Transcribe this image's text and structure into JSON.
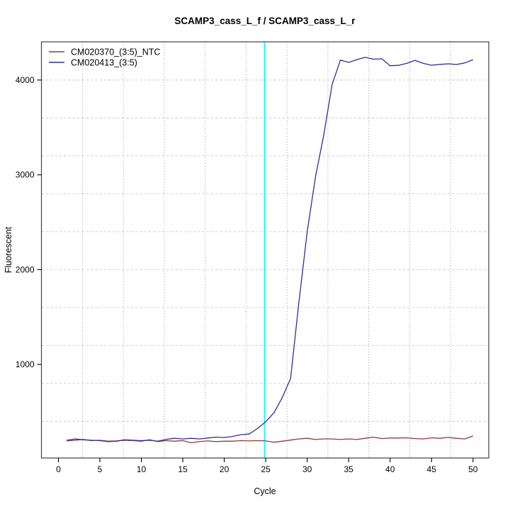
{
  "chart_data": {
    "type": "line",
    "title": "SCAMP3_cass_L_f / SCAMP3_cass_L_r",
    "xlabel": "Cycle",
    "ylabel": "Fluorescent",
    "xlim": [
      -2.05,
      51.9
    ],
    "ylim": [
      13,
      4403
    ],
    "x_ticks": [
      0,
      5,
      10,
      15,
      20,
      25,
      30,
      35,
      40,
      45,
      50
    ],
    "y_ticks": [
      1000,
      2000,
      3000,
      4000
    ],
    "grid": {
      "on": true,
      "x_lines": [
        2.9,
        7.83,
        12.77,
        17.7,
        22.63,
        27.57,
        32.5,
        37.43,
        42.37,
        47.3
      ],
      "y_lines": [
        400,
        800,
        1200,
        1600,
        2000,
        2400,
        2800,
        3200,
        3600,
        4000
      ],
      "x_line_style": "dotted",
      "y_line_style": "dashed",
      "x_line_color": "#8f8f8f",
      "y_line_color": "#c9c9c9"
    },
    "threshold_line": {
      "x": 24.85,
      "color": "#00ffff",
      "orientation": "vertical"
    },
    "legend": {
      "position": "top-left"
    },
    "border_color": "#404040",
    "series": [
      {
        "name": "CM020370_(3:5)_NTC",
        "role": "ntc",
        "color": "#993636",
        "x": [
          1,
          2,
          3,
          4,
          5,
          6,
          7,
          8,
          9,
          10,
          11,
          12,
          13,
          14,
          15,
          16,
          17,
          18,
          19,
          20,
          21,
          22,
          23,
          24,
          25,
          26,
          27,
          28,
          29,
          30,
          31,
          32,
          33,
          34,
          35,
          36,
          37,
          38,
          39,
          40,
          41,
          42,
          43,
          44,
          45,
          46,
          47,
          48,
          49,
          50
        ],
        "values": [
          193,
          200,
          208,
          196,
          200,
          190,
          193,
          200,
          196,
          190,
          205,
          186,
          196,
          190,
          196,
          174,
          186,
          193,
          186,
          190,
          190,
          196,
          193,
          196,
          193,
          179,
          190,
          202,
          214,
          221,
          208,
          214,
          214,
          208,
          214,
          208,
          221,
          233,
          218,
          224,
          224,
          226,
          218,
          214,
          226,
          221,
          231,
          221,
          214,
          245
        ]
      },
      {
        "name": "CM020413_(3:5)",
        "role": "sample",
        "color": "#2e2e9c",
        "x": [
          1,
          2,
          3,
          4,
          5,
          6,
          7,
          8,
          9,
          10,
          11,
          12,
          13,
          14,
          15,
          16,
          17,
          18,
          19,
          20,
          21,
          22,
          23,
          24,
          25,
          26,
          27,
          28,
          29,
          30,
          31,
          32,
          33,
          34,
          35,
          36,
          37,
          38,
          39,
          40,
          41,
          42,
          43,
          44,
          45,
          46,
          47,
          48,
          49,
          50
        ],
        "values": [
          200,
          214,
          205,
          200,
          196,
          186,
          190,
          205,
          200,
          196,
          200,
          190,
          210,
          221,
          214,
          221,
          214,
          224,
          233,
          229,
          240,
          259,
          266,
          323,
          395,
          490,
          650,
          850,
          1650,
          2400,
          2980,
          3420,
          3950,
          4210,
          4186,
          4215,
          4239,
          4220,
          4224,
          4151,
          4155,
          4176,
          4208,
          4176,
          4156,
          4165,
          4171,
          4164,
          4180,
          4215
        ]
      }
    ]
  }
}
